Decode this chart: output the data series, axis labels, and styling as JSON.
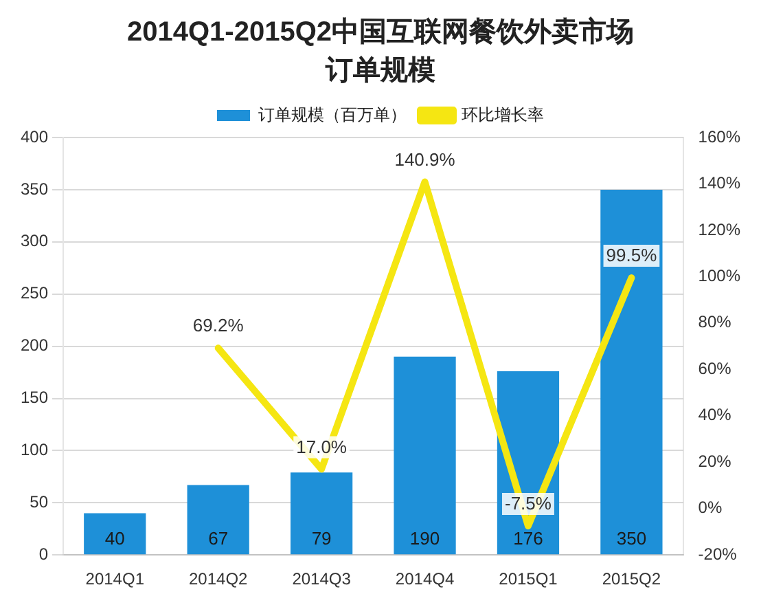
{
  "chart_data": {
    "type": "bar",
    "title": "2014Q1-2015Q2中国互联网餐饮外卖市场",
    "subtitle": "订单规模",
    "categories": [
      "2014Q1",
      "2014Q2",
      "2014Q3",
      "2014Q4",
      "2015Q1",
      "2015Q2"
    ],
    "series": [
      {
        "name": "订单规模（百万单）",
        "color": "#1e90d8",
        "values": [
          40,
          67,
          79,
          190,
          176,
          350
        ],
        "value_labels": [
          "40",
          "67",
          "79",
          "190",
          "176",
          "350"
        ]
      },
      {
        "name": "环比增长率",
        "type": "line",
        "axis": "y2",
        "color": "#f5e612",
        "values": [
          null,
          69.2,
          17.0,
          140.9,
          -7.5,
          99.5
        ],
        "value_labels": [
          null,
          "69.2%",
          "17.0%",
          "140.9%",
          "-7.5%",
          "99.5%"
        ]
      }
    ],
    "ylim": [
      0,
      400
    ],
    "yticks": [
      0,
      50,
      100,
      150,
      200,
      250,
      300,
      350,
      400
    ],
    "y2lim": [
      -20,
      160
    ],
    "y2ticks": [
      {
        "value": -20,
        "label": "-20%"
      },
      {
        "value": 0,
        "label": "0%"
      },
      {
        "value": 20,
        "label": "20%"
      },
      {
        "value": 40,
        "label": "40%"
      },
      {
        "value": 60,
        "label": "60%"
      },
      {
        "value": 80,
        "label": "80%"
      },
      {
        "value": 100,
        "label": "100%"
      },
      {
        "value": 120,
        "label": "120%"
      },
      {
        "value": 140,
        "label": "140%"
      },
      {
        "value": 160,
        "label": "160%"
      }
    ],
    "grid": "y",
    "legend": "top",
    "marker": "none",
    "line_style": "solid"
  }
}
